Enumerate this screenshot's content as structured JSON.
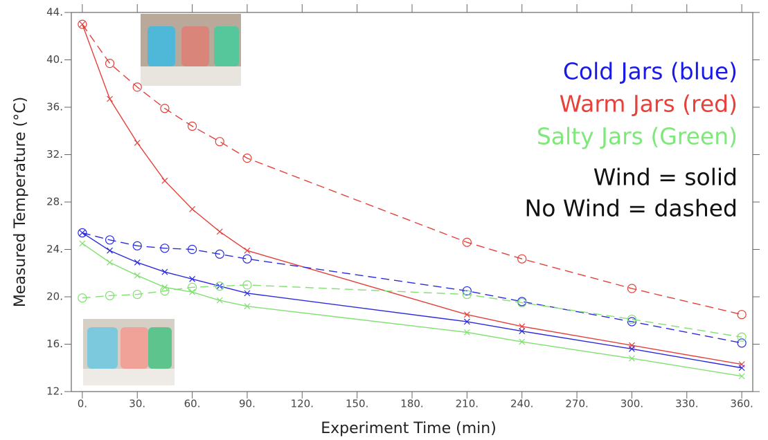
{
  "chart_data": {
    "type": "line",
    "xlabel": "Experiment Time (min)",
    "ylabel": "Measured Temperature (°C)",
    "x": [
      0,
      15,
      30,
      45,
      60,
      75,
      90,
      210,
      240,
      300,
      360
    ],
    "series": [
      {
        "color": "#e3403a",
        "dashed": true,
        "marker": "circle",
        "values": [
          43.0,
          39.7,
          37.7,
          35.9,
          34.4,
          33.1,
          31.7,
          24.6,
          23.2,
          20.7,
          18.5
        ]
      },
      {
        "color": "#e3403a",
        "dashed": false,
        "marker": "x",
        "values": [
          43.0,
          36.7,
          33.0,
          29.8,
          27.4,
          25.5,
          23.9,
          18.5,
          17.5,
          15.9,
          14.3
        ]
      },
      {
        "color": "#2a2ae0",
        "dashed": true,
        "marker": "circle",
        "values": [
          25.4,
          24.8,
          24.3,
          24.1,
          24.0,
          23.6,
          23.2,
          20.5,
          19.6,
          17.9,
          16.1
        ]
      },
      {
        "color": "#2a2ae0",
        "dashed": false,
        "marker": "x",
        "values": [
          25.4,
          23.9,
          22.9,
          22.1,
          21.5,
          20.9,
          20.3,
          17.9,
          17.1,
          15.6,
          14.0
        ]
      },
      {
        "color": "#80e070",
        "dashed": true,
        "marker": "circle",
        "values": [
          19.9,
          20.1,
          20.2,
          20.5,
          20.8,
          20.9,
          21.0,
          20.2,
          19.5,
          18.1,
          16.6
        ]
      },
      {
        "color": "#80e070",
        "dashed": false,
        "marker": "x",
        "values": [
          24.5,
          22.9,
          21.8,
          20.8,
          20.4,
          19.7,
          19.2,
          17.0,
          16.2,
          14.8,
          13.3
        ]
      }
    ],
    "xlim": [
      -6,
      366
    ],
    "ylim": [
      12,
      44
    ],
    "xticks": [
      {
        "value": 0,
        "label": "0."
      },
      {
        "value": 30,
        "label": "30."
      },
      {
        "value": 60,
        "label": "60."
      },
      {
        "value": 90,
        "label": "90."
      },
      {
        "value": 120,
        "label": "120."
      },
      {
        "value": 150,
        "label": "150."
      },
      {
        "value": 180,
        "label": "180."
      },
      {
        "value": 210,
        "label": "210."
      },
      {
        "value": 240,
        "label": "240."
      },
      {
        "value": 270,
        "label": "270."
      },
      {
        "value": 300,
        "label": "300."
      },
      {
        "value": 330,
        "label": "330."
      },
      {
        "value": 360,
        "label": "360."
      }
    ],
    "yticks": [
      {
        "value": 12,
        "label": "12."
      },
      {
        "value": 16,
        "label": "16."
      },
      {
        "value": 20,
        "label": "20."
      },
      {
        "value": 24,
        "label": "24."
      },
      {
        "value": 28,
        "label": "28."
      },
      {
        "value": 32,
        "label": "32."
      },
      {
        "value": 36,
        "label": "36."
      },
      {
        "value": 40,
        "label": "40."
      },
      {
        "value": 44,
        "label": "44."
      }
    ],
    "annotations": [
      {
        "text": "Cold Jars (blue)",
        "color": "#1a1ae6"
      },
      {
        "text": "Warm Jars (red)",
        "color": "#e8413c"
      },
      {
        "text": "Salty Jars (Green)",
        "color": "#7ee87a"
      },
      {
        "text": "Wind = solid",
        "color": "#111111"
      },
      {
        "text": "No Wind = dashed",
        "color": "#111111"
      }
    ]
  }
}
